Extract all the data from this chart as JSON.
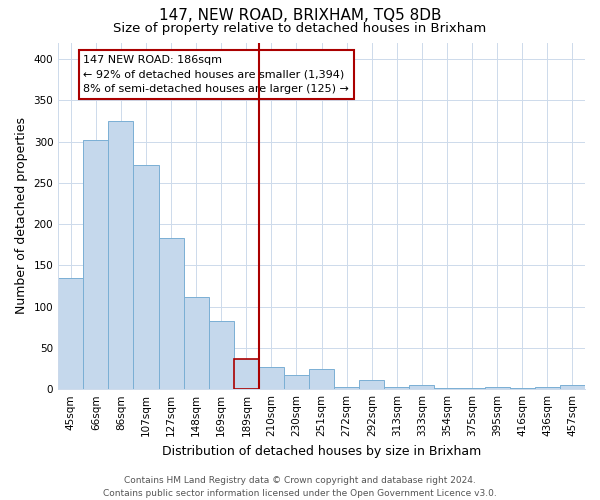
{
  "title": "147, NEW ROAD, BRIXHAM, TQ5 8DB",
  "subtitle": "Size of property relative to detached houses in Brixham",
  "xlabel": "Distribution of detached houses by size in Brixham",
  "ylabel": "Number of detached properties",
  "bar_labels": [
    "45sqm",
    "66sqm",
    "86sqm",
    "107sqm",
    "127sqm",
    "148sqm",
    "169sqm",
    "189sqm",
    "210sqm",
    "230sqm",
    "251sqm",
    "272sqm",
    "292sqm",
    "313sqm",
    "333sqm",
    "354sqm",
    "375sqm",
    "395sqm",
    "416sqm",
    "436sqm",
    "457sqm"
  ],
  "bar_values": [
    135,
    302,
    325,
    271,
    183,
    112,
    83,
    37,
    27,
    17,
    24,
    3,
    11,
    3,
    5,
    2,
    1,
    3,
    1,
    3,
    5
  ],
  "bar_color": "#c5d8ec",
  "bar_edge_color": "#7aafd4",
  "highlight_bar_index": 7,
  "highlight_color": "#aa0000",
  "annotation_title": "147 NEW ROAD: 186sqm",
  "annotation_line1": "← 92% of detached houses are smaller (1,394)",
  "annotation_line2": "8% of semi-detached houses are larger (125) →",
  "annotation_box_color": "#ffffff",
  "annotation_box_edge": "#aa0000",
  "ylim": [
    0,
    420
  ],
  "yticks": [
    0,
    50,
    100,
    150,
    200,
    250,
    300,
    350,
    400
  ],
  "footer_line1": "Contains HM Land Registry data © Crown copyright and database right 2024.",
  "footer_line2": "Contains public sector information licensed under the Open Government Licence v3.0.",
  "title_fontsize": 11,
  "subtitle_fontsize": 9.5,
  "axis_label_fontsize": 9,
  "tick_fontsize": 7.5,
  "annotation_fontsize": 8,
  "footer_fontsize": 6.5,
  "background_color": "#ffffff",
  "grid_color": "#cddaeb"
}
